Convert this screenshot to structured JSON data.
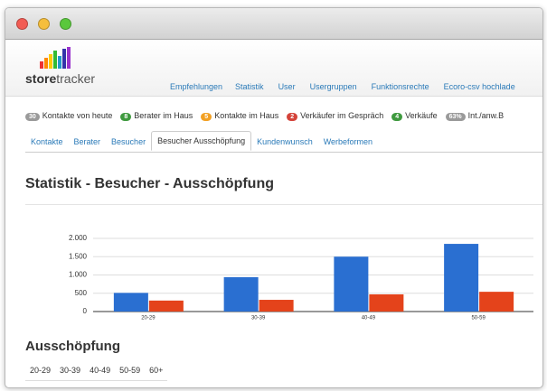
{
  "logo": {
    "strong": "store",
    "light": "tracker"
  },
  "nav": [
    "Empfehlungen",
    "Statistik",
    "User",
    "Usergruppen",
    "Funktionsrechte",
    "Ecoro-csv hochlade"
  ],
  "badges": [
    {
      "count": 30,
      "label": "Kontakte von heute",
      "color": "#9a9a9a"
    },
    {
      "count": 8,
      "label": "Berater im Haus",
      "color": "#3f9a3f"
    },
    {
      "count": 5,
      "label": "Kontakte im Haus",
      "color": "#f2a023"
    },
    {
      "count": 2,
      "label": "Verkäufer im Gespräch",
      "color": "#d4433a"
    },
    {
      "count": 4,
      "label": "Verkäufe",
      "color": "#3f9a3f"
    },
    {
      "count": "63%",
      "label": "Int./anw.B",
      "color": "#9a9a9a"
    }
  ],
  "tabs": [
    "Kontakte",
    "Berater",
    "Besucher",
    "Besucher Ausschöpfung",
    "Kundenwunsch",
    "Werbeformen"
  ],
  "active_tab": 3,
  "heading": "Statistik - Besucher - Ausschöpfung",
  "chart_data": {
    "type": "bar",
    "categories": [
      "20-29",
      "30-39",
      "40-49",
      "50-59"
    ],
    "series": [
      {
        "color": "#2a6fd1",
        "values": [
          510,
          940,
          1500,
          1850
        ]
      },
      {
        "color": "#e4431b",
        "values": [
          300,
          320,
          470,
          540
        ]
      }
    ],
    "ylim": [
      0,
      2000
    ],
    "yticks": [
      0,
      500,
      {
        "value": 1000,
        "label": "1.000"
      },
      {
        "value": 1500,
        "label": "1.500"
      },
      {
        "value": 2000,
        "label": "2.000"
      }
    ],
    "grid": true
  },
  "table": {
    "title": "Ausschöpfung",
    "header": [
      "20-29",
      "30-39",
      "40-49",
      "50-59",
      "60+"
    ]
  }
}
